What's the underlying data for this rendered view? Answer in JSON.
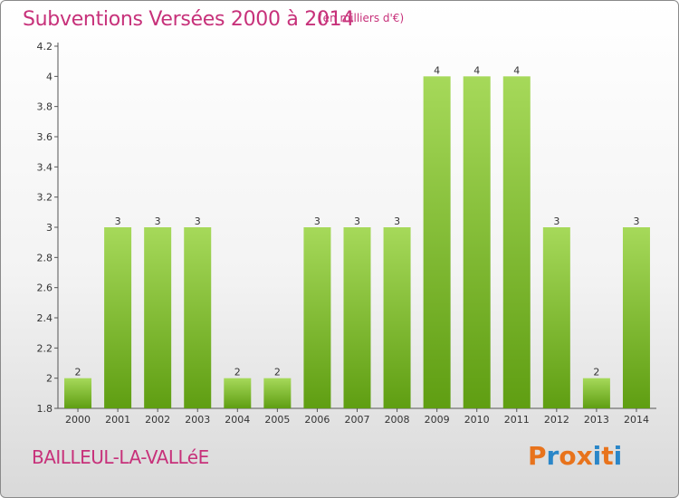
{
  "header": {
    "title": "Subventions Versées 2000 à 2014",
    "unit": "(en milliers d'€)"
  },
  "footer": {
    "commune": "BAILLEUL-LA-VALLéE",
    "logo_text": "Proxiti"
  },
  "colors": {
    "title": "#c7317a",
    "bar_top": "#a6d95a",
    "bar_bottom": "#5f9e12",
    "logo": [
      "#e8731c",
      "#2a86c8",
      "#e8731c",
      "#e8731c",
      "#2a86c8",
      "#e8731c",
      "#2a86c8"
    ]
  },
  "chart_data": {
    "type": "bar",
    "categories": [
      "2000",
      "2001",
      "2002",
      "2003",
      "2004",
      "2005",
      "2006",
      "2007",
      "2008",
      "2009",
      "2010",
      "2011",
      "2012",
      "2013",
      "2014"
    ],
    "values": [
      2,
      3,
      3,
      3,
      2,
      2,
      3,
      3,
      3,
      4,
      4,
      4,
      3,
      2,
      3
    ],
    "data_labels": [
      "2",
      "3",
      "3",
      "3",
      "2",
      "2",
      "3",
      "3",
      "3",
      "4",
      "4",
      "4",
      "3",
      "2",
      "3"
    ],
    "yticks": [
      "1.8",
      "2",
      "2.2",
      "2.4",
      "2.6",
      "2.8",
      "3",
      "3.2",
      "3.4",
      "3.6",
      "3.8",
      "4",
      "4.2"
    ],
    "ylim": [
      1.8,
      4.2
    ],
    "grid": false,
    "title": "Subventions Versées 2000 à 2014",
    "xlabel": "",
    "ylabel": ""
  }
}
